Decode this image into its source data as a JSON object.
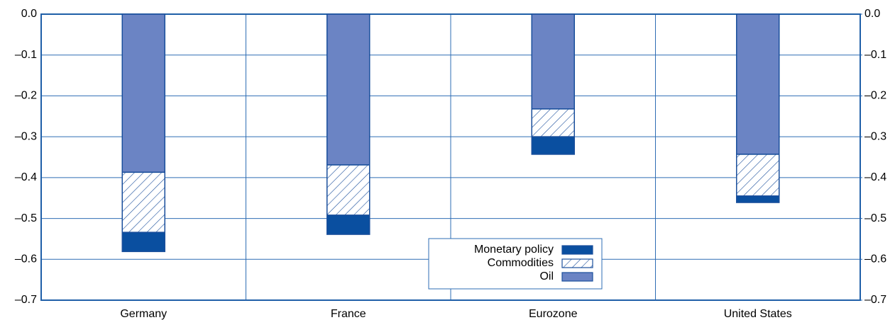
{
  "chart_data": {
    "type": "bar",
    "stacked": true,
    "categories": [
      "Germany",
      "France",
      "Eurozone",
      "United States"
    ],
    "series": [
      {
        "name": "Monetary policy",
        "color": "#0a4fa0",
        "values": [
          -0.047,
          -0.047,
          -0.043,
          -0.016
        ]
      },
      {
        "name": "Commodities",
        "color": "#1a4f9c",
        "pattern": "hatch",
        "values": [
          -0.147,
          -0.123,
          -0.068,
          -0.102
        ]
      },
      {
        "name": "Oil",
        "color": "#6b84c4",
        "values": [
          -0.387,
          -0.369,
          -0.232,
          -0.343
        ]
      }
    ],
    "ylim": [
      -0.7,
      0
    ],
    "yticks": [
      {
        "value": 0,
        "label": "0.0"
      },
      {
        "value": -0.1,
        "label": "–0.1"
      },
      {
        "value": -0.2,
        "label": "–0.2"
      },
      {
        "value": -0.3,
        "label": "–0.3"
      },
      {
        "value": -0.4,
        "label": "–0.4"
      },
      {
        "value": -0.5,
        "label": "–0.5"
      },
      {
        "value": -0.6,
        "label": "–0.6"
      },
      {
        "value": -0.7,
        "label": "–0.7"
      }
    ],
    "y2lim": [
      -0.7,
      0
    ],
    "y2ticks": [
      {
        "value": 0,
        "label": "0.0"
      },
      {
        "value": -0.1,
        "label": "–0.1"
      },
      {
        "value": -0.2,
        "label": "–0.2"
      },
      {
        "value": -0.3,
        "label": "–0.3"
      },
      {
        "value": -0.4,
        "label": "–0.4"
      },
      {
        "value": -0.5,
        "label": "–0.5"
      },
      {
        "value": -0.6,
        "label": "–0.6"
      },
      {
        "value": -0.7,
        "label": "–0.7"
      }
    ],
    "grid": true
  }
}
